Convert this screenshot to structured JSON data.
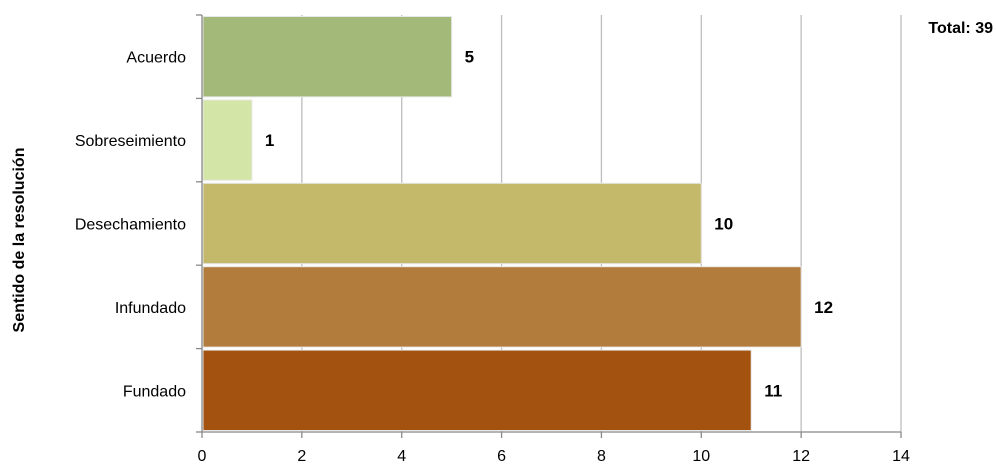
{
  "total_label": "Total: 39",
  "chart_data": {
    "type": "bar",
    "orientation": "horizontal",
    "title": "",
    "xlabel": "",
    "ylabel": "Sentido de la resolución",
    "categories": [
      "Acuerdo",
      "Sobreseimiento",
      "Desechamiento",
      "Infundado",
      "Fundado"
    ],
    "values": [
      5,
      1,
      10,
      12,
      11
    ],
    "colors": [
      "#a3b97a",
      "#d4e5a8",
      "#c4b96a",
      "#b27c3c",
      "#a3520f"
    ],
    "xlim": [
      0,
      14
    ],
    "xticks": [
      0,
      2,
      4,
      6,
      8,
      10,
      12,
      14
    ],
    "grid": true,
    "legend": "none"
  }
}
